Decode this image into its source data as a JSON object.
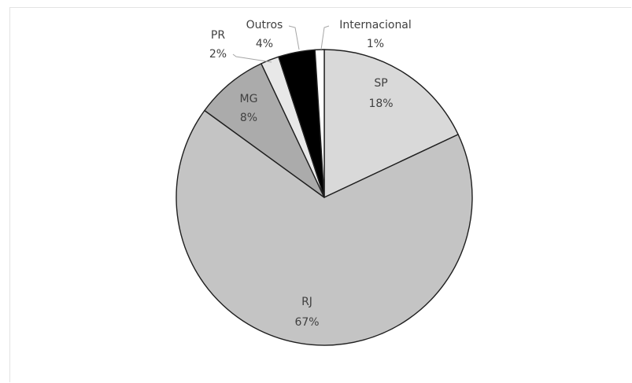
{
  "chart_data": {
    "type": "pie",
    "title": "",
    "categories": [
      "SP",
      "RJ",
      "MG",
      "PR",
      "Outros",
      "Internacional"
    ],
    "values": [
      18,
      67,
      8,
      2,
      4,
      1
    ],
    "labels": [
      {
        "name": "SP",
        "percent": "18%"
      },
      {
        "name": "RJ",
        "percent": "67%"
      },
      {
        "name": "MG",
        "percent": "8%"
      },
      {
        "name": "PR",
        "percent": "2%"
      },
      {
        "name": "Outros",
        "percent": "4%"
      },
      {
        "name": "Internacional",
        "percent": "1%"
      }
    ],
    "colors": [
      "#d9d9d9",
      "#c4c4c4",
      "#ababab",
      "#e8e8e8",
      "#000000",
      "#ffffff"
    ],
    "legend": "none",
    "label_position": "on-slice with leader lines for small slices"
  }
}
